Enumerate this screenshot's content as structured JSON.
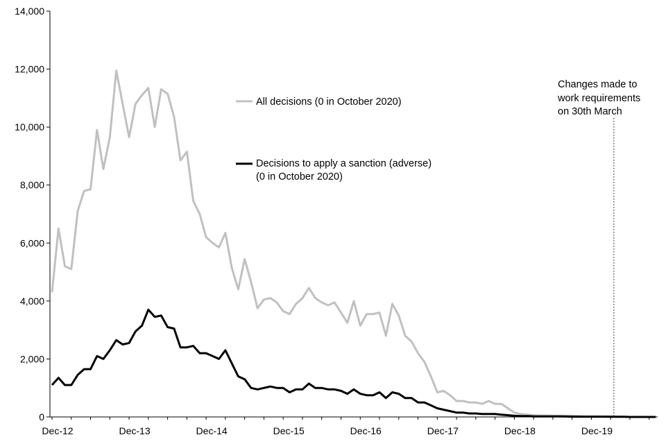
{
  "chart_data": {
    "type": "line",
    "title": "",
    "xlabel": "",
    "ylabel": "",
    "ylim": [
      0,
      14000
    ],
    "yticks": [
      0,
      2000,
      4000,
      6000,
      8000,
      10000,
      12000,
      14000
    ],
    "ytick_labels": [
      "0",
      "2,000",
      "4,000",
      "6,000",
      "8,000",
      "10,000",
      "12,000",
      "14,000"
    ],
    "x_tick_labels": [
      "Dec-12",
      "Dec-13",
      "Dec-14",
      "Dec-15",
      "Dec-16",
      "Dec-17",
      "Dec-18",
      "Dec-19"
    ],
    "x_tick_month_index": [
      0,
      12,
      24,
      36,
      48,
      60,
      72,
      84
    ],
    "x_start": "Dec-12",
    "x_end": "Oct-20",
    "months_count": 95,
    "colors": {
      "all_decisions": "#c0c0c0",
      "adverse": "#000000",
      "axis": "#000000",
      "event_line": "#404040"
    },
    "legend": {
      "all_label": "All decisions (0 in October 2020)",
      "adverse_label_line1": "Decisions to apply a sanction (adverse)",
      "adverse_label_line2": "(0 in October 2020)"
    },
    "annotation": {
      "line1": "Changes made to",
      "line2": "work requirements",
      "line3": "on 30th March",
      "month_index": 87.5
    },
    "series": [
      {
        "name": "All decisions (0 in October 2020)",
        "color": "#c0c0c0",
        "values": [
          4300,
          6500,
          5200,
          5100,
          7100,
          7800,
          7850,
          9900,
          8550,
          9650,
          11950,
          10800,
          9650,
          10800,
          11100,
          11350,
          10000,
          11300,
          11150,
          10350,
          8850,
          9150,
          7450,
          7000,
          6200,
          6000,
          5850,
          6350,
          5150,
          4400,
          5450,
          4650,
          3750,
          4050,
          4100,
          3950,
          3650,
          3550,
          3900,
          4100,
          4450,
          4100,
          3950,
          3850,
          3950,
          3600,
          3250,
          4000,
          3150,
          3550,
          3550,
          3600,
          2800,
          3900,
          3500,
          2800,
          2600,
          2200,
          1900,
          1400,
          850,
          900,
          750,
          550,
          550,
          500,
          500,
          450,
          550,
          450,
          450,
          300,
          150,
          100,
          80,
          60,
          50,
          50,
          40,
          40,
          40,
          40,
          30,
          20,
          20,
          20,
          20,
          20,
          10,
          10,
          0,
          0,
          0,
          0,
          0
        ]
      },
      {
        "name": "Decisions to apply a sanction (adverse) (0 in October 2020)",
        "color": "#000000",
        "values": [
          1100,
          1350,
          1100,
          1100,
          1450,
          1650,
          1650,
          2100,
          2000,
          2300,
          2650,
          2500,
          2550,
          2950,
          3150,
          3700,
          3450,
          3500,
          3100,
          3050,
          2400,
          2400,
          2450,
          2200,
          2200,
          2100,
          2000,
          2300,
          1850,
          1400,
          1300,
          1000,
          950,
          1000,
          1050,
          1000,
          1000,
          850,
          950,
          950,
          1150,
          1000,
          1000,
          950,
          950,
          900,
          800,
          950,
          800,
          750,
          750,
          850,
          650,
          850,
          800,
          650,
          650,
          500,
          500,
          400,
          300,
          250,
          200,
          150,
          150,
          120,
          120,
          100,
          100,
          100,
          80,
          60,
          40,
          30,
          30,
          20,
          20,
          20,
          20,
          20,
          15,
          10,
          10,
          10,
          10,
          10,
          10,
          5,
          5,
          5,
          0,
          0,
          0,
          0,
          0
        ]
      }
    ]
  }
}
